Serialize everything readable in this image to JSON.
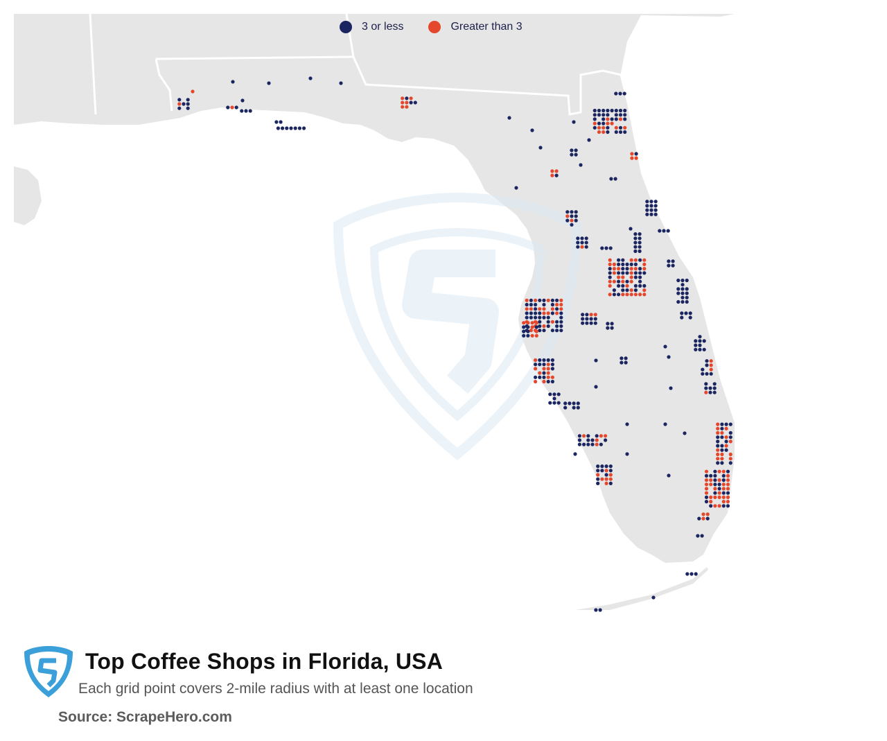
{
  "map": {
    "legend": [
      {
        "label": "3 or less",
        "color": "#1b2560"
      },
      {
        "label": "Greater than 3",
        "color": "#e4472b"
      }
    ],
    "colors": {
      "land": "#e6e6e6",
      "water": "#ffffff",
      "border": "#ffffff",
      "watermark": "#e9f2f8"
    },
    "watermark_icon": "scrapehero-shield-icon"
  },
  "footer": {
    "logo_icon": "scrapehero-shield-icon",
    "title": "Top Coffee Shops in Florida, USA",
    "subtitle": "Each grid point covers 2-mile radius with at least one location",
    "source": "Source: ScrapeHero.com",
    "brand_color": "#3b9fd9"
  }
}
